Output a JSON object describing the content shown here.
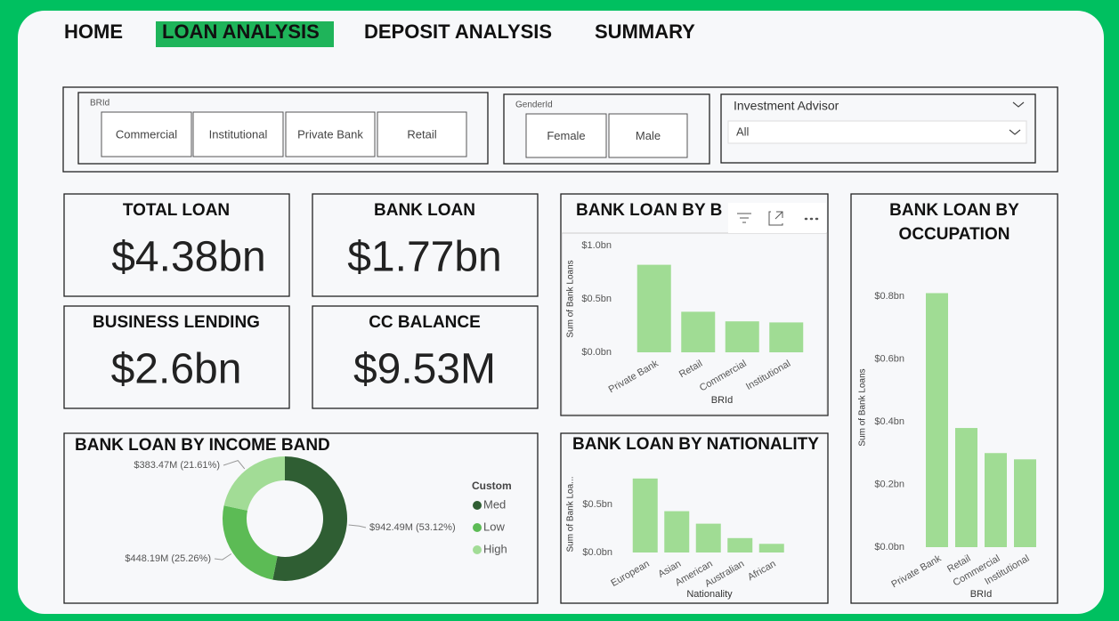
{
  "nav": [
    {
      "label": "HOME",
      "active": false
    },
    {
      "label": "LOAN ANALYSIS",
      "active": true
    },
    {
      "label": "DEPOSIT ANALYSIS",
      "active": false
    },
    {
      "label": "SUMMARY",
      "active": false
    }
  ],
  "slicers": [
    {
      "title": "BRId",
      "options": [
        "Commercial",
        "Institutional",
        "Private Bank",
        "Retail"
      ]
    },
    {
      "title": "GenderId",
      "options": [
        "Female",
        "Male"
      ]
    },
    {
      "title": "Investment Advisor",
      "selected": "All"
    }
  ],
  "cards": [
    {
      "title": "TOTAL LOAN",
      "value": "$4.38bn"
    },
    {
      "title": "BANK LOAN",
      "value": "$1.77bn"
    },
    {
      "title": "BUSINESS LENDING",
      "value": "$2.6bn"
    },
    {
      "title": "CC BALANCE",
      "value": "$9.53M"
    }
  ],
  "charts": [
    {
      "type": "bar",
      "title": "BANK LOAN BY B",
      "ylabel": "Sum of Bank Loans",
      "xlabel": "BRId",
      "categories": [
        "Private Bank",
        "Retail",
        "Commercial",
        "Institutional"
      ],
      "values": [
        0.82,
        0.38,
        0.29,
        0.28
      ],
      "ylim": [
        0,
        1.0
      ],
      "yticks": [
        {
          "value": 0,
          "label": "$0.0bn"
        },
        {
          "value": 0.5,
          "label": "$0.5bn"
        },
        {
          "value": 1,
          "label": "$1.0bn"
        }
      ],
      "color": "#a0dc94"
    },
    {
      "type": "bar",
      "title": [
        "BANK LOAN BY",
        "OCCUPATION"
      ],
      "ylabel": "Sum of Bank Loans",
      "xlabel": "BRId",
      "categories": [
        "Private Bank",
        "Retail",
        "Commercial",
        "Institutional"
      ],
      "values": [
        0.81,
        0.38,
        0.3,
        0.28
      ],
      "ylim": [
        0,
        0.8
      ],
      "yticks": [
        {
          "value": 0,
          "label": "$0.0bn"
        },
        {
          "value": 0.2,
          "label": "$0.2bn"
        },
        {
          "value": 0.4,
          "label": "$0.4bn"
        },
        {
          "value": 0.6,
          "label": "$0.6bn"
        },
        {
          "value": 0.8,
          "label": "$0.8bn"
        }
      ],
      "color": "#a0dc94"
    },
    {
      "type": "pie",
      "title": "BANK LOAN BY INCOME BAND",
      "legend_title": "Custom",
      "categories": [
        "Med",
        "Low",
        "High"
      ],
      "values": [
        942.49,
        448.19,
        383.47
      ],
      "value_labels": [
        "$942.49M (53.12%)",
        "$448.19M (25.26%)",
        "$383.47M (21.61%)"
      ],
      "colors": [
        "#2f5e33",
        "#5cbb55",
        "#a2dc96"
      ]
    },
    {
      "type": "bar",
      "title": "BANK LOAN BY NATIONALITY",
      "ylabel": "Sum of Bank Loa...",
      "xlabel": "Nationality",
      "categories": [
        "European",
        "Asian",
        "American",
        "Australian",
        "African"
      ],
      "values": [
        0.77,
        0.43,
        0.3,
        0.15,
        0.09
      ],
      "ylim": [
        0,
        0.8
      ],
      "yticks": [
        {
          "value": 0,
          "label": "$0.0bn"
        },
        {
          "value": 0.5,
          "label": "$0.5bn"
        }
      ],
      "color": "#a0dc94"
    }
  ]
}
